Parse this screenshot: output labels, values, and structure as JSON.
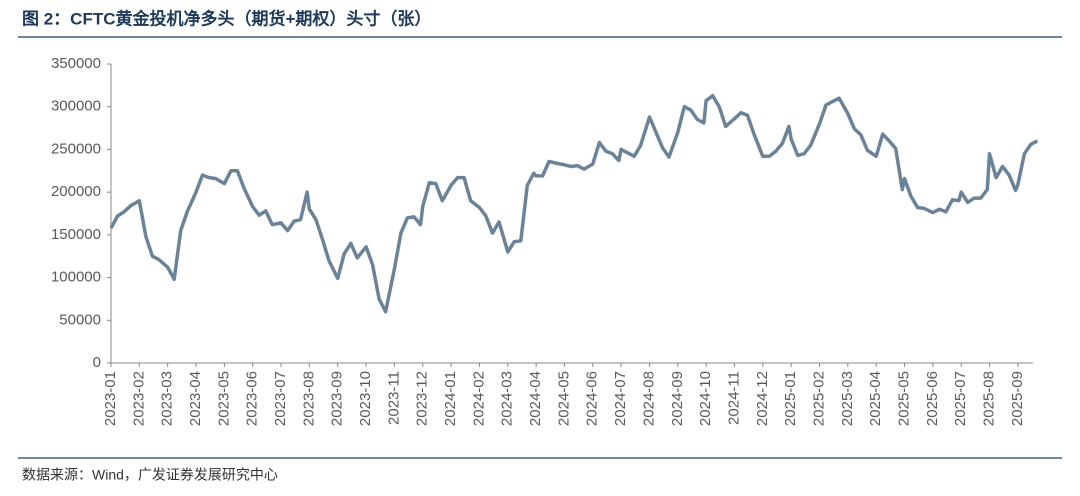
{
  "chart_data": {
    "type": "line",
    "title": "图 2：CFTC黄金投机净多头（期货+期权）头寸（张）",
    "source": "数据来源：Wind，广发证券发展研究中心",
    "x": [
      "2023-01",
      "2023-01",
      "2023-01",
      "2023-01",
      "2023-02",
      "2023-02",
      "2023-02",
      "2023-02",
      "2023-03",
      "2023-03",
      "2023-03",
      "2023-03",
      "2023-04",
      "2023-04",
      "2023-04",
      "2023-04",
      "2023-05",
      "2023-05",
      "2023-05",
      "2023-05",
      "2023-06",
      "2023-06",
      "2023-06",
      "2023-06",
      "2023-07",
      "2023-07",
      "2023-07",
      "2023-07",
      "2023-07",
      "2023-08",
      "2023-08",
      "2023-08",
      "2023-08",
      "2023-09",
      "2023-09",
      "2023-09",
      "2023-09",
      "2023-10",
      "2023-10",
      "2023-10",
      "2023-10",
      "2023-11",
      "2023-11",
      "2023-11",
      "2023-11",
      "2023-11",
      "2023-12",
      "2023-12",
      "2023-12",
      "2023-12",
      "2024-01",
      "2024-01",
      "2024-01",
      "2024-01",
      "2024-02",
      "2024-02",
      "2024-02",
      "2024-02",
      "2024-03",
      "2024-03",
      "2024-03",
      "2024-03",
      "2024-03",
      "2024-04",
      "2024-04",
      "2024-04",
      "2024-04",
      "2024-05",
      "2024-05",
      "2024-05",
      "2024-05",
      "2024-06",
      "2024-06",
      "2024-06",
      "2024-06",
      "2024-06",
      "2024-07",
      "2024-07",
      "2024-07",
      "2024-07",
      "2024-08",
      "2024-08",
      "2024-08",
      "2024-08",
      "2024-09",
      "2024-09",
      "2024-09",
      "2024-09",
      "2024-09",
      "2024-10",
      "2024-10",
      "2024-10",
      "2024-10",
      "2024-11",
      "2024-11",
      "2024-11",
      "2024-11",
      "2024-12",
      "2024-12",
      "2024-12",
      "2024-12",
      "2024-12",
      "2025-01",
      "2025-01",
      "2025-01",
      "2025-01",
      "2025-02",
      "2025-02",
      "2025-02",
      "2025-02",
      "2025-03",
      "2025-03",
      "2025-03",
      "2025-03",
      "2025-04",
      "2025-04",
      "2025-04",
      "2025-04",
      "2025-04",
      "2025-05",
      "2025-05",
      "2025-05",
      "2025-05",
      "2025-06",
      "2025-06",
      "2025-06",
      "2025-06",
      "2025-06",
      "2025-07",
      "2025-07",
      "2025-07",
      "2025-07",
      "2025-07",
      "2025-08",
      "2025-08",
      "2025-08",
      "2025-08",
      "2025-08",
      "2025-09",
      "2025-09",
      "2025-09",
      "2025-09"
    ],
    "series": [
      {
        "name": "CFTC黄金投机净多头",
        "color": "#6b8399",
        "values": [
          158000,
          172000,
          177000,
          184000,
          190000,
          148000,
          125000,
          121000,
          112000,
          98000,
          155000,
          177000,
          200000,
          220000,
          217000,
          216000,
          210000,
          225000,
          225000,
          205000,
          183000,
          173000,
          178000,
          162000,
          164000,
          155000,
          166000,
          168000,
          200000,
          180000,
          168000,
          145000,
          120000,
          99000,
          128000,
          140000,
          123000,
          136000,
          115000,
          75000,
          60000,
          110000,
          152000,
          170000,
          171000,
          162000,
          183000,
          211000,
          210000,
          190000,
          208000,
          217000,
          217000,
          190000,
          182000,
          172000,
          152000,
          165000,
          130000,
          142000,
          143000,
          208000,
          222000,
          219000,
          219000,
          236000,
          234000,
          232000,
          230000,
          231000,
          227000,
          233000,
          258000,
          248000,
          245000,
          237000,
          250000,
          246000,
          242000,
          255000,
          288000,
          270000,
          252000,
          241000,
          270000,
          300000,
          296000,
          285000,
          281000,
          307000,
          313000,
          300000,
          277000,
          286000,
          293000,
          290000,
          268000,
          242000,
          242000,
          248000,
          257000,
          277000,
          262000,
          243000,
          245000,
          255000,
          280000,
          302000,
          306000,
          310000,
          292000,
          274000,
          267000,
          249000,
          242000,
          268000,
          260000,
          251000,
          203000,
          216000,
          195000,
          182000,
          181000,
          176000,
          180000,
          177000,
          191000,
          190000,
          200000,
          188000,
          193000,
          193000,
          203000,
          245000,
          217000,
          230000,
          220000,
          202000,
          209000,
          245000,
          256000,
          260000
        ]
      }
    ],
    "ylim": [
      0,
      350000
    ],
    "yticks": [
      0,
      50000,
      100000,
      150000,
      200000,
      250000,
      300000,
      350000
    ],
    "grid": false
  }
}
